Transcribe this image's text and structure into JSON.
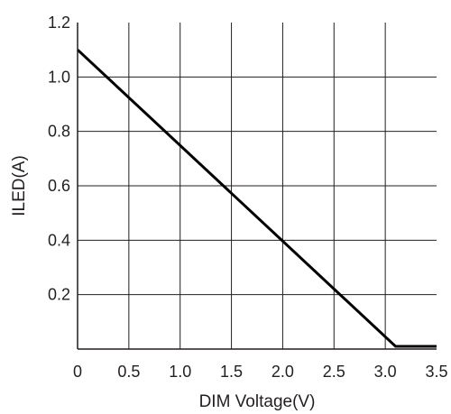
{
  "chart_data": {
    "type": "line",
    "title": "",
    "xlabel": "DIM Voltage(V)",
    "ylabel": "ILED(A)",
    "xlim": [
      0,
      3.5
    ],
    "ylim": [
      0,
      1.2
    ],
    "x_ticks": [
      "0",
      "0.5",
      "1.0",
      "1.5",
      "2.0",
      "2.5",
      "3.0",
      "3.5"
    ],
    "y_ticks": [
      "0.2",
      "0.4",
      "0.6",
      "0.8",
      "1.0",
      "1.2"
    ],
    "grid": true,
    "series": [
      {
        "x": [
          0,
          3.1,
          3.5
        ],
        "y": [
          1.1,
          0.01,
          0.01
        ]
      }
    ],
    "colors": {
      "line": "#000000",
      "grid": "#231f20",
      "text": "#231f20"
    }
  }
}
